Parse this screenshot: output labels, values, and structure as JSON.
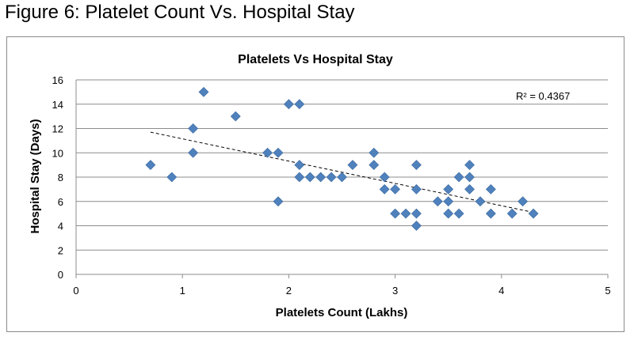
{
  "figure_title": "Figure 6: Platelet Count Vs. Hospital Stay",
  "chart_data": {
    "type": "scatter",
    "title": "Platelets Vs Hospital Stay",
    "xlabel": "Platelets Count (Lakhs)",
    "ylabel": "Hospital Stay (Days)",
    "xlim": [
      0,
      5
    ],
    "ylim": [
      0,
      16
    ],
    "xticks": [
      0,
      1,
      2,
      3,
      4,
      5
    ],
    "yticks": [
      0,
      2,
      4,
      6,
      8,
      10,
      12,
      14,
      16
    ],
    "grid": "horizontal",
    "marker_color": "#4F81BD",
    "trendline": {
      "type": "linear",
      "from": [
        0.7,
        11.7
      ],
      "to": [
        4.3,
        5.1
      ],
      "style": "dashed",
      "color": "#000000"
    },
    "annotation": "R² = 0.4367",
    "points": [
      {
        "x": 0.7,
        "y": 9
      },
      {
        "x": 0.9,
        "y": 8
      },
      {
        "x": 1.1,
        "y": 10
      },
      {
        "x": 1.1,
        "y": 12
      },
      {
        "x": 1.2,
        "y": 15
      },
      {
        "x": 1.5,
        "y": 13
      },
      {
        "x": 1.8,
        "y": 10
      },
      {
        "x": 1.9,
        "y": 10
      },
      {
        "x": 1.9,
        "y": 6
      },
      {
        "x": 2.0,
        "y": 14
      },
      {
        "x": 2.1,
        "y": 14
      },
      {
        "x": 2.1,
        "y": 9
      },
      {
        "x": 2.1,
        "y": 8
      },
      {
        "x": 2.2,
        "y": 8
      },
      {
        "x": 2.3,
        "y": 8
      },
      {
        "x": 2.4,
        "y": 8
      },
      {
        "x": 2.5,
        "y": 8
      },
      {
        "x": 2.6,
        "y": 9
      },
      {
        "x": 2.8,
        "y": 10
      },
      {
        "x": 2.8,
        "y": 9
      },
      {
        "x": 2.9,
        "y": 8
      },
      {
        "x": 2.9,
        "y": 7
      },
      {
        "x": 3.0,
        "y": 7
      },
      {
        "x": 3.0,
        "y": 5
      },
      {
        "x": 3.1,
        "y": 5
      },
      {
        "x": 3.2,
        "y": 9
      },
      {
        "x": 3.2,
        "y": 7
      },
      {
        "x": 3.2,
        "y": 5
      },
      {
        "x": 3.2,
        "y": 4
      },
      {
        "x": 3.4,
        "y": 6
      },
      {
        "x": 3.5,
        "y": 7
      },
      {
        "x": 3.5,
        "y": 6
      },
      {
        "x": 3.5,
        "y": 5
      },
      {
        "x": 3.6,
        "y": 8
      },
      {
        "x": 3.6,
        "y": 5
      },
      {
        "x": 3.7,
        "y": 9
      },
      {
        "x": 3.7,
        "y": 8
      },
      {
        "x": 3.7,
        "y": 7
      },
      {
        "x": 3.8,
        "y": 6
      },
      {
        "x": 3.9,
        "y": 7
      },
      {
        "x": 3.9,
        "y": 5
      },
      {
        "x": 4.1,
        "y": 5
      },
      {
        "x": 4.2,
        "y": 6
      },
      {
        "x": 4.3,
        "y": 5
      }
    ]
  }
}
